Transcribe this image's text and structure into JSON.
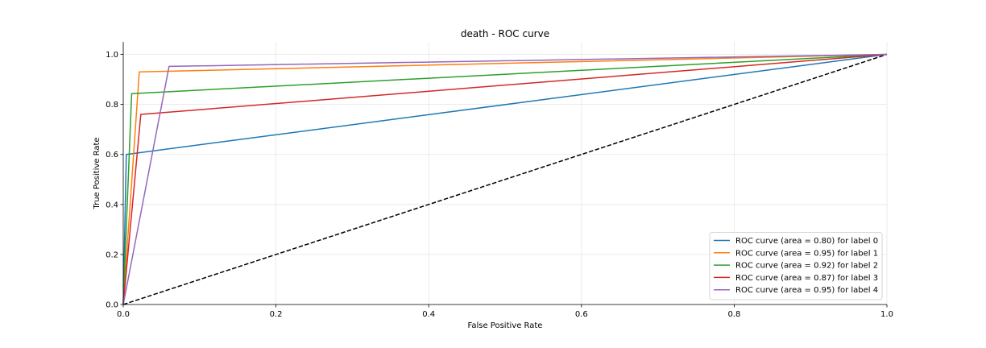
{
  "chart_data": {
    "type": "line",
    "title": "death - ROC curve",
    "xlabel": "False Positive Rate",
    "ylabel": "True Positive Rate",
    "xlim": [
      0.0,
      1.0
    ],
    "ylim": [
      0.0,
      1.05
    ],
    "xticks": [
      0.0,
      0.2,
      0.4,
      0.6,
      0.8,
      1.0
    ],
    "xtick_labels": [
      "0.0",
      "0.2",
      "0.4",
      "0.6",
      "0.8",
      "1.0"
    ],
    "yticks": [
      0.0,
      0.2,
      0.4,
      0.6,
      0.8,
      1.0
    ],
    "ytick_labels": [
      "0.0",
      "0.2",
      "0.4",
      "0.6",
      "0.8",
      "1.0"
    ],
    "grid": true,
    "legend_position": "lower-right",
    "series": [
      {
        "name": "ROC curve (area = 0.80) for label 0",
        "color": "#1f77b4",
        "x": [
          0.0,
          0.004,
          1.0
        ],
        "y": [
          0.0,
          0.6,
          1.0
        ]
      },
      {
        "name": "ROC curve (area = 0.95) for label 1",
        "color": "#ff7f0e",
        "x": [
          0.0,
          0.021,
          1.0
        ],
        "y": [
          0.0,
          0.93,
          1.0
        ]
      },
      {
        "name": "ROC curve (area = 0.92) for label 2",
        "color": "#2ca02c",
        "x": [
          0.0,
          0.011,
          1.0
        ],
        "y": [
          0.0,
          0.843,
          1.0
        ]
      },
      {
        "name": "ROC curve (area = 0.87) for label 3",
        "color": "#d62728",
        "x": [
          0.0,
          0.023,
          1.0
        ],
        "y": [
          0.0,
          0.76,
          1.0
        ]
      },
      {
        "name": "ROC curve (area = 0.95) for label 4",
        "color": "#9467bd",
        "x": [
          0.0,
          0.06,
          1.0
        ],
        "y": [
          0.0,
          0.952,
          1.0
        ]
      }
    ],
    "reference_line": {
      "x": [
        0.0,
        1.0
      ],
      "y": [
        0.0,
        1.0
      ],
      "color": "#000000",
      "style": "dashed"
    }
  }
}
